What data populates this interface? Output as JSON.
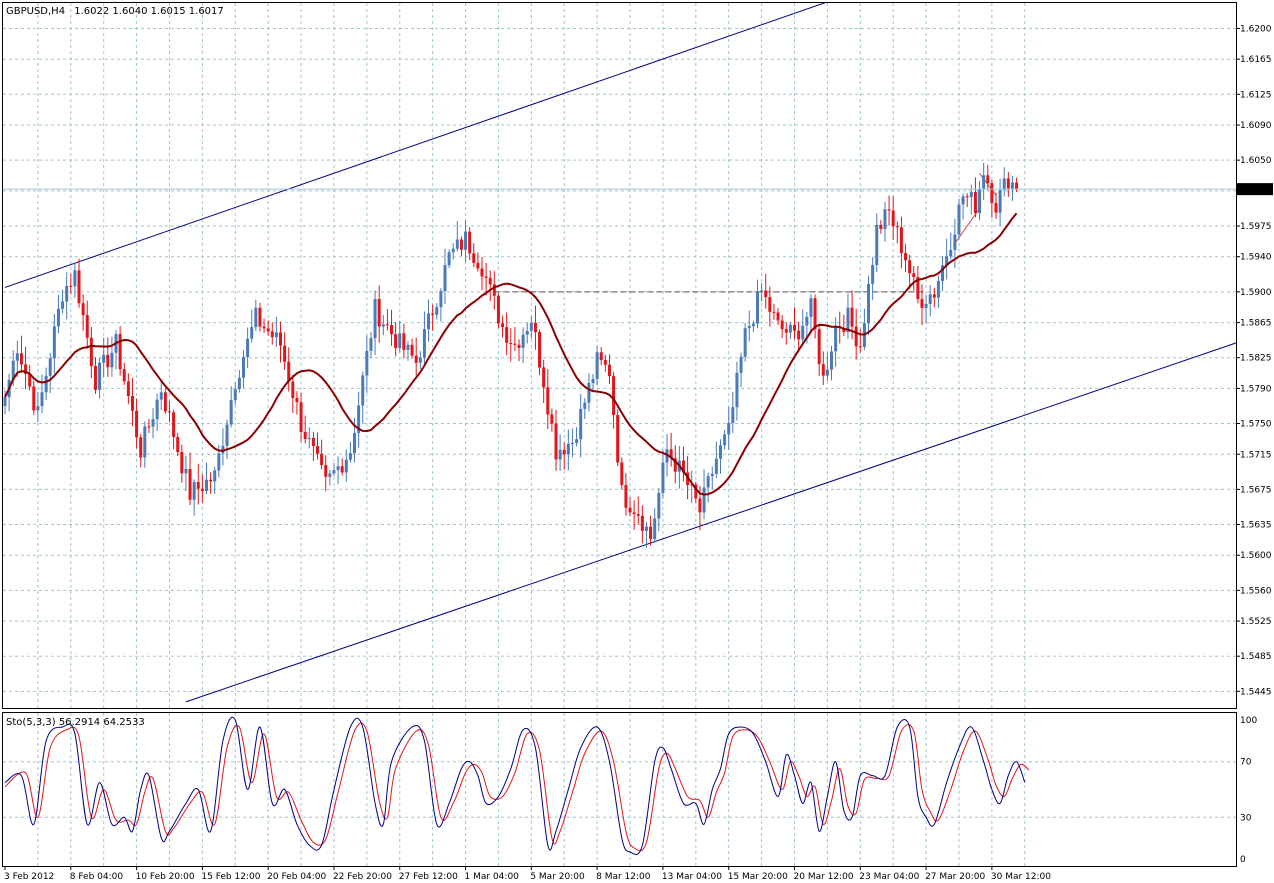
{
  "chart_data": {
    "type": "candlestick",
    "header": {
      "symbol_label": "GBPUSD,H4",
      "ohlc": "1.6022 1.6040 1.6015 1.6017"
    },
    "price_axis": {
      "ylim": [
        1.5426,
        1.6229
      ],
      "ticks": [
        "1.6200",
        "1.6165",
        "1.6125",
        "1.6090",
        "1.6050",
        "1.6015",
        "1.5975",
        "1.5940",
        "1.5900",
        "1.5865",
        "1.5825",
        "1.5790",
        "1.5750",
        "1.5715",
        "1.5675",
        "1.5635",
        "1.5600",
        "1.5560",
        "1.5525",
        "1.5485",
        "1.5445"
      ],
      "current_price": "1.6017"
    },
    "time_axis": {
      "labels": [
        "3 Feb 2012",
        "8 Feb 04:00",
        "10 Feb 20:00",
        "15 Feb 12:00",
        "20 Feb 04:00",
        "22 Feb 20:00",
        "27 Feb 12:00",
        "1 Mar 04:00",
        "5 Mar 20:00",
        "8 Mar 12:00",
        "13 Mar 04:00",
        "15 Mar 20:00",
        "20 Mar 12:00",
        "23 Mar 04:00",
        "27 Mar 20:00",
        "30 Mar 12:00"
      ],
      "label_bar_index": [
        0,
        16,
        32,
        48,
        64,
        80,
        96,
        112,
        128,
        144,
        160,
        176,
        192,
        208,
        224,
        240
      ]
    },
    "colors": {
      "bull": "#4a7ab8",
      "bear": "#e0161c",
      "ma": "#8b0000",
      "channel": "#000080",
      "grid": "#9fc7cf"
    },
    "pivot_closes": [
      [
        0,
        1.578
      ],
      [
        3,
        1.584
      ],
      [
        8,
        1.576
      ],
      [
        14,
        1.59
      ],
      [
        17,
        1.592
      ],
      [
        22,
        1.58
      ],
      [
        27,
        1.584
      ],
      [
        33,
        1.572
      ],
      [
        38,
        1.579
      ],
      [
        45,
        1.567
      ],
      [
        51,
        1.569
      ],
      [
        56,
        1.58
      ],
      [
        61,
        1.587
      ],
      [
        67,
        1.584
      ],
      [
        72,
        1.575
      ],
      [
        78,
        1.568
      ],
      [
        84,
        1.572
      ],
      [
        90,
        1.588
      ],
      [
        96,
        1.584
      ],
      [
        100,
        1.582
      ],
      [
        104,
        1.588
      ],
      [
        108,
        1.594
      ],
      [
        112,
        1.596
      ],
      [
        116,
        1.593
      ],
      [
        118,
        1.59
      ],
      [
        121,
        1.586
      ],
      [
        124,
        1.584
      ],
      [
        128,
        1.587
      ],
      [
        131,
        1.58
      ],
      [
        134,
        1.572
      ],
      [
        138,
        1.573
      ],
      [
        144,
        1.582
      ],
      [
        147,
        1.581
      ],
      [
        150,
        1.567
      ],
      [
        154,
        1.565
      ],
      [
        157,
        1.562
      ],
      [
        161,
        1.572
      ],
      [
        165,
        1.569
      ],
      [
        169,
        1.565
      ],
      [
        173,
        1.571
      ],
      [
        176,
        1.574
      ],
      [
        180,
        1.585
      ],
      [
        184,
        1.59
      ],
      [
        188,
        1.586
      ],
      [
        192,
        1.585
      ],
      [
        196,
        1.588
      ],
      [
        199,
        1.58
      ],
      [
        202,
        1.586
      ],
      [
        205,
        1.587
      ],
      [
        208,
        1.584
      ],
      [
        212,
        1.597
      ],
      [
        215,
        1.599
      ],
      [
        219,
        1.594
      ],
      [
        222,
        1.589
      ],
      [
        226,
        1.59
      ],
      [
        230,
        1.596
      ],
      [
        233,
        1.601
      ],
      [
        236,
        1.6
      ],
      [
        238,
        1.604
      ],
      [
        241,
        1.6
      ],
      [
        244,
        1.603
      ],
      [
        246,
        1.6017
      ]
    ],
    "ma_period": 21,
    "horizontal_line": {
      "price": 1.59,
      "from_bar": 119,
      "to_bar": 224
    },
    "channel_lines": [
      {
        "p1": [
          0,
          1.5905
        ],
        "p2": [
          206,
          1.624
        ]
      },
      {
        "p1": [
          44,
          1.5433
        ],
        "p2": [
          302,
          1.5846
        ]
      }
    ],
    "small_lines": [
      {
        "p1": [
          231,
          1.5955
        ],
        "p2": [
          237,
          1.5995
        ]
      },
      {
        "p1": [
          237,
          1.6035
        ],
        "p2": [
          241,
          1.601
        ]
      }
    ],
    "stochastic": {
      "header": "Sto(5,3,3) 56.2914 64.2533",
      "ticks": [
        "100",
        "70",
        "30",
        "0"
      ],
      "ylim": [
        0,
        100
      ],
      "main_pivots": [
        [
          0,
          55
        ],
        [
          4,
          60
        ],
        [
          7,
          25
        ],
        [
          10,
          85
        ],
        [
          14,
          95
        ],
        [
          17,
          90
        ],
        [
          20,
          25
        ],
        [
          23,
          55
        ],
        [
          26,
          25
        ],
        [
          29,
          30
        ],
        [
          31,
          20
        ],
        [
          33,
          50
        ],
        [
          35,
          60
        ],
        [
          38,
          15
        ],
        [
          40,
          20
        ],
        [
          44,
          40
        ],
        [
          47,
          50
        ],
        [
          50,
          20
        ],
        [
          53,
          85
        ],
        [
          56,
          100
        ],
        [
          59,
          50
        ],
        [
          62,
          95
        ],
        [
          65,
          40
        ],
        [
          68,
          50
        ],
        [
          71,
          25
        ],
        [
          74,
          10
        ],
        [
          77,
          10
        ],
        [
          80,
          50
        ],
        [
          84,
          95
        ],
        [
          87,
          95
        ],
        [
          90,
          40
        ],
        [
          92,
          25
        ],
        [
          94,
          70
        ],
        [
          99,
          95
        ],
        [
          102,
          85
        ],
        [
          105,
          25
        ],
        [
          108,
          40
        ],
        [
          111,
          65
        ],
        [
          113,
          70
        ],
        [
          115,
          60
        ],
        [
          117,
          40
        ],
        [
          120,
          45
        ],
        [
          123,
          65
        ],
        [
          126,
          93
        ],
        [
          129,
          80
        ],
        [
          132,
          10
        ],
        [
          134,
          20
        ],
        [
          137,
          50
        ],
        [
          140,
          80
        ],
        [
          144,
          95
        ],
        [
          147,
          70
        ],
        [
          150,
          15
        ],
        [
          152,
          5
        ],
        [
          155,
          10
        ],
        [
          158,
          70
        ],
        [
          160,
          80
        ],
        [
          162,
          65
        ],
        [
          165,
          40
        ],
        [
          168,
          40
        ],
        [
          170,
          25
        ],
        [
          172,
          50
        ],
        [
          174,
          65
        ],
        [
          176,
          90
        ],
        [
          179,
          95
        ],
        [
          182,
          90
        ],
        [
          185,
          70
        ],
        [
          188,
          45
        ],
        [
          190,
          75
        ],
        [
          192,
          60
        ],
        [
          194,
          40
        ],
        [
          196,
          55
        ],
        [
          198,
          20
        ],
        [
          200,
          45
        ],
        [
          202,
          70
        ],
        [
          204,
          35
        ],
        [
          206,
          30
        ],
        [
          208,
          60
        ],
        [
          211,
          60
        ],
        [
          214,
          60
        ],
        [
          217,
          95
        ],
        [
          220,
          95
        ],
        [
          222,
          45
        ],
        [
          224,
          30
        ],
        [
          226,
          25
        ],
        [
          229,
          55
        ],
        [
          232,
          80
        ],
        [
          235,
          95
        ],
        [
          238,
          70
        ],
        [
          240,
          50
        ],
        [
          242,
          40
        ],
        [
          244,
          60
        ],
        [
          246,
          70
        ],
        [
          248,
          55
        ]
      ],
      "signal_pivots": [
        [
          0,
          52
        ],
        [
          5,
          62
        ],
        [
          8,
          30
        ],
        [
          11,
          80
        ],
        [
          15,
          93
        ],
        [
          18,
          88
        ],
        [
          21,
          30
        ],
        [
          24,
          50
        ],
        [
          27,
          28
        ],
        [
          30,
          28
        ],
        [
          32,
          25
        ],
        [
          34,
          48
        ],
        [
          36,
          58
        ],
        [
          39,
          20
        ],
        [
          41,
          22
        ],
        [
          45,
          40
        ],
        [
          48,
          48
        ],
        [
          51,
          25
        ],
        [
          54,
          80
        ],
        [
          57,
          95
        ],
        [
          60,
          55
        ],
        [
          63,
          90
        ],
        [
          66,
          45
        ],
        [
          69,
          48
        ],
        [
          72,
          28
        ],
        [
          75,
          12
        ],
        [
          78,
          14
        ],
        [
          81,
          48
        ],
        [
          85,
          92
        ],
        [
          88,
          92
        ],
        [
          91,
          42
        ],
        [
          93,
          30
        ],
        [
          95,
          65
        ],
        [
          100,
          92
        ],
        [
          103,
          82
        ],
        [
          106,
          30
        ],
        [
          109,
          40
        ],
        [
          112,
          62
        ],
        [
          114,
          68
        ],
        [
          116,
          62
        ],
        [
          118,
          45
        ],
        [
          121,
          45
        ],
        [
          124,
          62
        ],
        [
          127,
          90
        ],
        [
          130,
          78
        ],
        [
          133,
          15
        ],
        [
          135,
          20
        ],
        [
          138,
          48
        ],
        [
          141,
          76
        ],
        [
          145,
          92
        ],
        [
          148,
          70
        ],
        [
          151,
          20
        ],
        [
          153,
          8
        ],
        [
          156,
          12
        ],
        [
          159,
          65
        ],
        [
          161,
          76
        ],
        [
          163,
          65
        ],
        [
          166,
          45
        ],
        [
          169,
          42
        ],
        [
          171,
          30
        ],
        [
          173,
          48
        ],
        [
          175,
          62
        ],
        [
          177,
          88
        ],
        [
          180,
          93
        ],
        [
          183,
          88
        ],
        [
          186,
          70
        ],
        [
          189,
          50
        ],
        [
          191,
          70
        ],
        [
          193,
          60
        ],
        [
          195,
          45
        ],
        [
          197,
          52
        ],
        [
          199,
          25
        ],
        [
          201,
          42
        ],
        [
          203,
          65
        ],
        [
          205,
          38
        ],
        [
          207,
          33
        ],
        [
          209,
          57
        ],
        [
          212,
          58
        ],
        [
          215,
          60
        ],
        [
          218,
          92
        ],
        [
          221,
          92
        ],
        [
          223,
          50
        ],
        [
          225,
          34
        ],
        [
          227,
          28
        ],
        [
          230,
          50
        ],
        [
          233,
          77
        ],
        [
          236,
          92
        ],
        [
          239,
          72
        ],
        [
          241,
          53
        ],
        [
          243,
          45
        ],
        [
          245,
          58
        ],
        [
          247,
          68
        ],
        [
          249,
          64
        ]
      ]
    }
  }
}
